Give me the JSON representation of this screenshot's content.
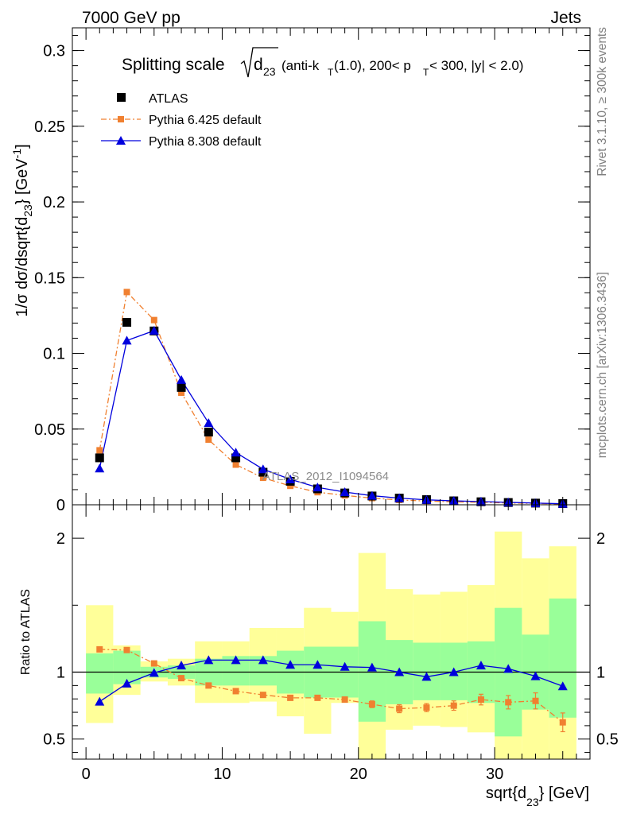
{
  "header": {
    "left": "7000 GeV pp",
    "right": "Jets"
  },
  "side_labels": {
    "rivet": "Rivet 3.1.10, ≥ 300k events",
    "mcplots": "mcplots.cern.ch [arXiv:1306.3436]"
  },
  "watermark": "ATLAS_2012_I1094564",
  "colors": {
    "atlas": "#000000",
    "pythia6": "#f08030",
    "pythia8": "#0000dd",
    "band_inner": "#99ff99",
    "band_outer": "#ffff99"
  },
  "chart_data": [
    {
      "type": "scatter",
      "title": "Splitting scale √d23 (anti-kT(1.0), 200< pT < 300, |y| < 2.0)",
      "title_parts": {
        "prefix": "Splitting scale",
        "d": "d",
        "d_sub": "23",
        "cut1": "(anti-k",
        "cut1_sub": "T",
        "cut2": "(1.0), 200< p",
        "cut2_sub": "T",
        "cut3": " < 300, |y| < 2.0)"
      },
      "ylabel": "1/σ dσ/dsqrt{d23} [GeV-1]",
      "ylabel_parts": {
        "main": "1/σ dσ/dsqrt{d",
        "sub": "23",
        "close": "} [GeV",
        "sup": "-1",
        "end": "]"
      },
      "xlim": [
        -1,
        37
      ],
      "ylim": [
        0,
        0.315
      ],
      "y_ticks": [
        0,
        0.05,
        0.1,
        0.15,
        0.2,
        0.25,
        0.3
      ],
      "y_tick_labels": [
        "0",
        "0.05",
        "0.1",
        "0.15",
        "0.2",
        "0.25",
        "0.3"
      ],
      "legend_position": "top-left",
      "x": [
        1,
        3,
        5,
        7,
        9,
        11,
        13,
        15,
        17,
        19,
        21,
        23,
        25,
        27,
        29,
        31,
        33,
        35
      ],
      "series": [
        {
          "name": "ATLAS",
          "values": [
            0.031,
            0.1205,
            0.1148,
            0.0775,
            0.048,
            0.031,
            0.0215,
            0.0155,
            0.0105,
            0.0078,
            0.0058,
            0.0044,
            0.0034,
            0.0026,
            0.002,
            0.0015,
            0.0011,
            0.0008
          ]
        },
        {
          "name": "Pythia 6.425 default",
          "values": [
            0.036,
            0.1405,
            0.122,
            0.074,
            0.043,
            0.0265,
            0.0178,
            0.0125,
            0.0083,
            0.0062,
            0.0044,
            0.0032,
            0.0025,
            0.0019,
            0.0016,
            0.0012,
            0.0009,
            0.0005
          ]
        },
        {
          "name": "Pythia 8.308 default",
          "values": [
            0.024,
            0.1085,
            0.115,
            0.0825,
            0.054,
            0.0345,
            0.0235,
            0.0168,
            0.0115,
            0.0084,
            0.006,
            0.0044,
            0.0033,
            0.0026,
            0.0021,
            0.0016,
            0.0011,
            0.0007
          ]
        }
      ]
    },
    {
      "type": "scatter",
      "ylabel": "Ratio to ATLAS",
      "xlabel": "sqrt{d23} [GeV]",
      "xlabel_parts": {
        "main": "sqrt{d",
        "sub": "23",
        "end": "} [GeV]"
      },
      "xlim": [
        -1,
        37
      ],
      "ylim": [
        0.35,
        2.25
      ],
      "x_ticks": [
        0,
        10,
        20,
        30
      ],
      "x_tick_labels": [
        "0",
        "10",
        "20",
        "30"
      ],
      "y_ticks": [
        0.5,
        1,
        2
      ],
      "y_tick_labels": [
        "0.5",
        "1",
        "2"
      ],
      "reference_line": 1,
      "x": [
        1,
        3,
        5,
        7,
        9,
        11,
        13,
        15,
        17,
        19,
        21,
        23,
        25,
        27,
        29,
        31,
        33,
        35
      ],
      "bin_edges": [
        0,
        2,
        4,
        6,
        8,
        10,
        12,
        14,
        16,
        18,
        20,
        22,
        24,
        26,
        28,
        30,
        32,
        34,
        36
      ],
      "band_inner": {
        "low": [
          0.84,
          0.91,
          0.96,
          0.95,
          0.9,
          0.9,
          0.9,
          0.84,
          0.81,
          0.81,
          0.63,
          0.76,
          0.79,
          0.79,
          0.77,
          0.52,
          0.72,
          0.66
        ],
        "high": [
          1.14,
          1.16,
          1.04,
          1.05,
          1.1,
          1.12,
          1.12,
          1.16,
          1.19,
          1.19,
          1.38,
          1.24,
          1.22,
          1.22,
          1.23,
          1.48,
          1.28,
          1.55
        ]
      },
      "band_outer": {
        "low": [
          0.62,
          0.83,
          0.93,
          0.9,
          0.77,
          0.77,
          0.78,
          0.67,
          0.54,
          0.77,
          0.2,
          0.57,
          0.6,
          0.59,
          0.55,
          0.2,
          0.35,
          0.35
        ],
        "high": [
          1.5,
          1.2,
          1.08,
          1.1,
          1.23,
          1.23,
          1.33,
          1.33,
          1.48,
          1.45,
          1.89,
          1.62,
          1.58,
          1.6,
          1.65,
          2.05,
          1.85,
          1.94
        ]
      },
      "series": [
        {
          "name": "Pythia 6.425 default",
          "values": [
            1.17,
            1.165,
            1.065,
            0.955,
            0.9,
            0.858,
            0.83,
            0.808,
            0.808,
            0.795,
            0.76,
            0.727,
            0.735,
            0.75,
            0.795,
            0.775,
            0.785,
            0.625
          ],
          "errors": [
            0.005,
            0.005,
            0.005,
            0.005,
            0.005,
            0.008,
            0.01,
            0.012,
            0.015,
            0.02,
            0.025,
            0.03,
            0.03,
            0.035,
            0.04,
            0.05,
            0.06,
            0.07
          ]
        },
        {
          "name": "Pythia 8.308 default",
          "values": [
            0.78,
            0.915,
            0.995,
            1.05,
            1.09,
            1.09,
            1.09,
            1.055,
            1.055,
            1.04,
            1.035,
            1.0,
            0.965,
            1.0,
            1.05,
            1.025,
            0.97,
            0.895
          ]
        }
      ]
    }
  ]
}
